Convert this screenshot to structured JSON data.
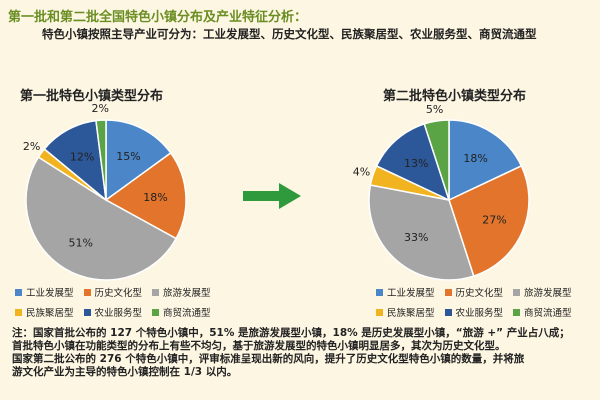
{
  "heading": "第一批和第二批全国特色小镇分布及产业特征分析：",
  "subheading": "特色小镇按照主导产业可分为：工业发展型、历史文化型、民族聚居型、农业服务型、商贸流通型",
  "colors": {
    "industrial": "#4a86c8",
    "historical": "#e2752b",
    "tourism": "#a5a5a5",
    "ethnic": "#f2b320",
    "agricultural": "#2c5899",
    "commerce": "#5aa445",
    "arrow": "#2e9a3c",
    "heading": "#6b8e23"
  },
  "legend": {
    "row1": [
      "工业发展型",
      "历史文化型",
      "旅游发展型"
    ],
    "row2": [
      "民族聚居型",
      "农业服务型",
      "商贸流通型"
    ]
  },
  "chart_data": [
    {
      "type": "pie",
      "title": "第一批特色小镇类型分布",
      "categories": [
        "工业发展型",
        "历史文化型",
        "旅游发展型",
        "民族聚居型",
        "农业服务型",
        "商贸流通型"
      ],
      "values": [
        15,
        18,
        51,
        2,
        12,
        2
      ],
      "labels": [
        "15%",
        "18%",
        "51%",
        "2%",
        "12%",
        "2%"
      ]
    },
    {
      "type": "pie",
      "title": "第二批特色小镇类型分布",
      "categories": [
        "工业发展型",
        "历史文化型",
        "旅游发展型",
        "民族聚居型",
        "农业服务型",
        "商贸流通型"
      ],
      "values": [
        18,
        27,
        33,
        4,
        13,
        5
      ],
      "labels": [
        "18%",
        "27%",
        "33%",
        "4%",
        "13%",
        "5%"
      ]
    }
  ],
  "note": {
    "line1": "注：国家首批公布的 127 个特色小镇中，51% 是旅游发展型小镇，18% 是历史发展型小镇，“旅游 +” 产业占八成；",
    "line2": "首批特色小镇在功能类型的分布上有些不均匀，基于旅游发展型的特色小镇明显居多，其次为历史文化型。",
    "line3": "国家第二批公布的 276 个特色小镇中，评审标准呈现出新的风向，提升了历史文化型特色小镇的数量，并将旅",
    "line4": "游文化产业为主导的特色小镇控制在 1/3 以内。"
  }
}
